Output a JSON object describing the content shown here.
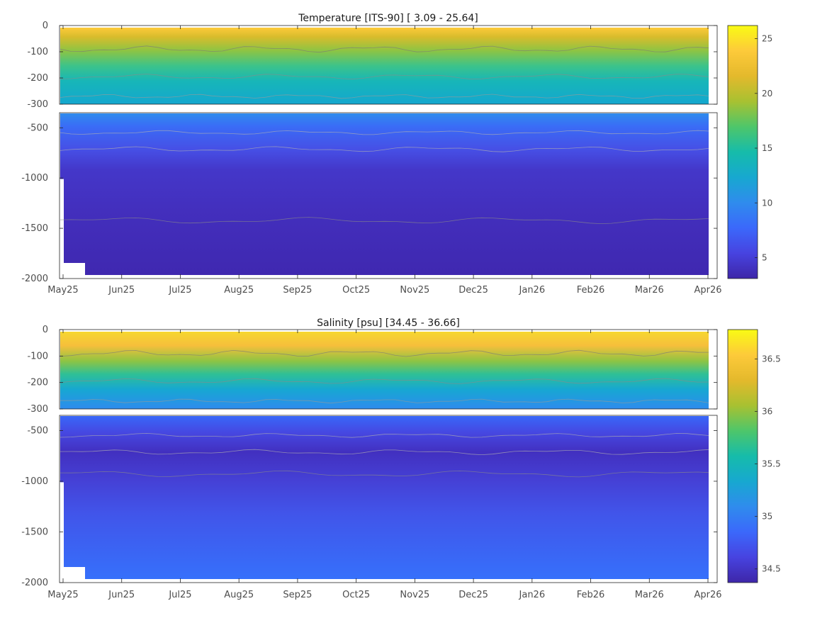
{
  "chart_data": [
    {
      "type": "heatmap",
      "title": "Temperature [ITS-90]   [ 3.09 - 25.64]",
      "x_labels": [
        "May25",
        "Jun25",
        "Jul25",
        "Aug25",
        "Sep25",
        "Oct25",
        "Nov25",
        "Dec25",
        "Jan26",
        "Feb26",
        "Mar26",
        "Apr26"
      ],
      "y_upper_ticks": [
        "0",
        "-100",
        "-200",
        "-300"
      ],
      "y_upper_values": [
        0,
        -100,
        -200,
        -300
      ],
      "y_lower_ticks": [
        "-500",
        "-1000",
        "-1500",
        "-2000"
      ],
      "y_lower_values": [
        -500,
        -1000,
        -1500,
        -2000
      ],
      "colorbar_ticks": [
        "25",
        "20",
        "15",
        "10",
        "5"
      ],
      "colorbar_values": [
        25,
        20,
        15,
        10,
        5
      ],
      "colorbar_range": [
        3.09,
        26.2
      ],
      "value_range": [
        3.09,
        25.64
      ]
    },
    {
      "type": "heatmap",
      "title": "Salinity [psu]   [34.45 - 36.66]",
      "x_labels": [
        "May25",
        "Jun25",
        "Jul25",
        "Aug25",
        "Sep25",
        "Oct25",
        "Nov25",
        "Dec25",
        "Jan26",
        "Feb26",
        "Mar26",
        "Apr26"
      ],
      "y_upper_ticks": [
        "0",
        "-100",
        "-200",
        "-300"
      ],
      "y_upper_values": [
        0,
        -100,
        -200,
        -300
      ],
      "y_lower_ticks": [
        "-500",
        "-1000",
        "-1500",
        "-2000"
      ],
      "y_lower_values": [
        -500,
        -1000,
        -1500,
        -2000
      ],
      "colorbar_ticks": [
        "36.5",
        "36",
        "35.5",
        "35",
        "34.5"
      ],
      "colorbar_values": [
        36.5,
        36,
        35.5,
        35,
        34.5
      ],
      "colorbar_range": [
        34.37,
        36.78
      ],
      "value_range": [
        34.45,
        36.66
      ]
    }
  ],
  "colormap": [
    "#3e26a8",
    "#4743e0",
    "#3b68fb",
    "#2f8ced",
    "#17a8d0",
    "#16bcaa",
    "#4ec66a",
    "#a8c131",
    "#e4b92c",
    "#fdca3a",
    "#f9fb14"
  ]
}
